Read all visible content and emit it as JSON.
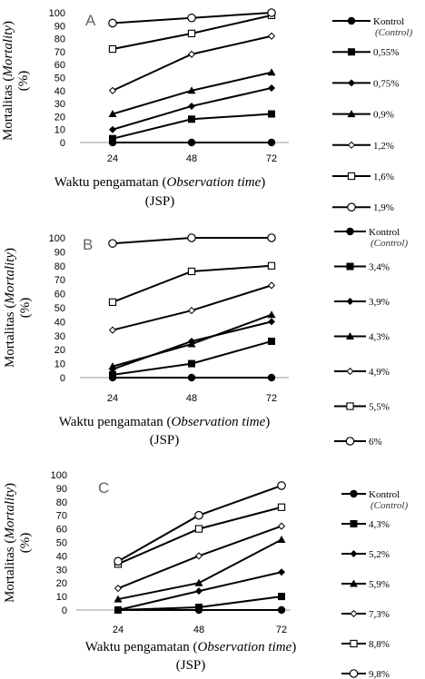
{
  "chart_data": [
    {
      "type": "line",
      "panel_label": "A",
      "x": [
        "24",
        "48",
        "72"
      ],
      "yticks": [
        "0",
        "10",
        "20",
        "30",
        "40",
        "50",
        "60",
        "70",
        "80",
        "90",
        "100"
      ],
      "ylim": [
        0,
        100
      ],
      "xlabel": {
        "main": "Waktu pengamatan (",
        "italic": "Observation time",
        "close": ")",
        "line2": "(JSP)"
      },
      "ylabel": {
        "pre": "Mortalitas (",
        "italic": "Mortality",
        "post": ")",
        "line2": "(%)"
      },
      "series": [
        {
          "name": "Kontrol",
          "sub": "(Control)",
          "marker": "filled-circle",
          "values": [
            0,
            0,
            0
          ]
        },
        {
          "name": "0,55%",
          "marker": "filled-square",
          "values": [
            3,
            18,
            22
          ]
        },
        {
          "name": "0,75%",
          "marker": "filled-diamond",
          "values": [
            10,
            28,
            42
          ]
        },
        {
          "name": "0,9%",
          "marker": "filled-triangle",
          "values": [
            22,
            40,
            54
          ]
        },
        {
          "name": "1,2%",
          "marker": "open-diamond",
          "values": [
            40,
            68,
            82
          ]
        },
        {
          "name": "1,6%",
          "marker": "open-square",
          "values": [
            72,
            84,
            98
          ]
        },
        {
          "name": "1,9%",
          "marker": "open-circle",
          "values": [
            92,
            96,
            100
          ]
        }
      ]
    },
    {
      "type": "line",
      "panel_label": "B",
      "x": [
        "24",
        "48",
        "72"
      ],
      "yticks": [
        "0",
        "10",
        "20",
        "30",
        "40",
        "50",
        "60",
        "70",
        "80",
        "90",
        "100"
      ],
      "ylim": [
        0,
        100
      ],
      "xlabel": {
        "main": "Waktu pengamatan (",
        "italic": "Observation time",
        "close": ")",
        "line2": "(JSP)"
      },
      "ylabel": {
        "pre": "Mortalitas (",
        "italic": "Mortality",
        "post": ")",
        "line2": "(%)"
      },
      "series": [
        {
          "name": "Kontrol",
          "sub": "(Control)",
          "marker": "filled-circle",
          "values": [
            0,
            0,
            0
          ]
        },
        {
          "name": "3,4%",
          "marker": "filled-square",
          "values": [
            2,
            10,
            26
          ]
        },
        {
          "name": "3,9%",
          "marker": "filled-diamond",
          "values": [
            6,
            26,
            40
          ]
        },
        {
          "name": "4,3%",
          "marker": "filled-triangle",
          "values": [
            8,
            24,
            45
          ]
        },
        {
          "name": "4,9%",
          "marker": "open-diamond",
          "values": [
            34,
            48,
            66
          ]
        },
        {
          "name": "5,5%",
          "marker": "open-square",
          "values": [
            54,
            76,
            80
          ]
        },
        {
          "name": "6%",
          "marker": "open-circle",
          "values": [
            96,
            100,
            100
          ]
        }
      ]
    },
    {
      "type": "line",
      "panel_label": "C",
      "x": [
        "24",
        "48",
        "72"
      ],
      "yticks": [
        "0",
        "10",
        "20",
        "30",
        "40",
        "50",
        "60",
        "70",
        "80",
        "90",
        "100"
      ],
      "ylim": [
        0,
        100
      ],
      "xlabel": {
        "main": "Waktu pengamatan (",
        "italic": "Observation time",
        "close": ")",
        "line2": "(JSP)"
      },
      "ylabel": {
        "pre": "Mortalitas (",
        "italic": "Mortality",
        "post": ")",
        "line2": "(%)"
      },
      "series": [
        {
          "name": "Kontrol",
          "sub": "(Control)",
          "marker": "filled-circle",
          "values": [
            0,
            0,
            0
          ]
        },
        {
          "name": "4,3%",
          "marker": "filled-square",
          "values": [
            0,
            2,
            10
          ]
        },
        {
          "name": "5,2%",
          "marker": "filled-diamond",
          "values": [
            0,
            14,
            28
          ]
        },
        {
          "name": "5,9%",
          "marker": "filled-triangle",
          "values": [
            8,
            20,
            52
          ]
        },
        {
          "name": "7,3%",
          "marker": "open-diamond",
          "values": [
            16,
            40,
            62
          ]
        },
        {
          "name": "8,8%",
          "marker": "open-square",
          "values": [
            34,
            60,
            76
          ]
        },
        {
          "name": "9,8%",
          "marker": "open-circle",
          "values": [
            36,
            70,
            92
          ]
        }
      ]
    }
  ]
}
